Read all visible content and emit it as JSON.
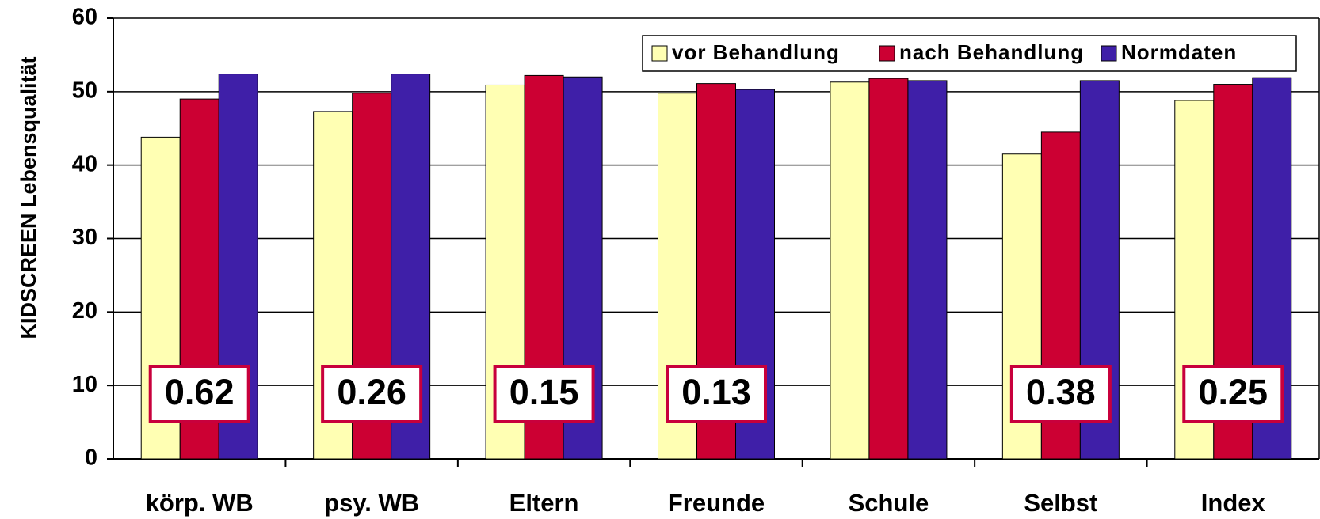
{
  "chart_data": {
    "type": "bar",
    "y_label": "KIDSCREEN Lebensqualität",
    "categories": [
      "körp. WB",
      "psy. WB",
      "Eltern",
      "Freunde",
      "Schule",
      "Selbst",
      "Index"
    ],
    "series": [
      {
        "name": "vor Behandlung",
        "color": "#ffffb3",
        "values": [
          43.8,
          47.3,
          50.9,
          49.8,
          51.3,
          41.5,
          48.8
        ]
      },
      {
        "name": "nach Behandlung",
        "color": "#cc0033",
        "values": [
          49.0,
          49.8,
          52.2,
          51.1,
          51.8,
          44.5,
          51.0
        ]
      },
      {
        "name": "Normdaten",
        "color": "#3f1fa8",
        "values": [
          52.4,
          52.4,
          52.0,
          50.3,
          51.5,
          51.5,
          51.9
        ]
      }
    ],
    "effect_labels": [
      "0.62",
      "0.26",
      "0.15",
      "0.13",
      null,
      "0.38",
      "0.25"
    ],
    "ylim": [
      0,
      60
    ],
    "yticks": [
      0,
      10,
      20,
      30,
      40,
      50,
      60
    ],
    "grid": true,
    "legend": "upper right"
  }
}
